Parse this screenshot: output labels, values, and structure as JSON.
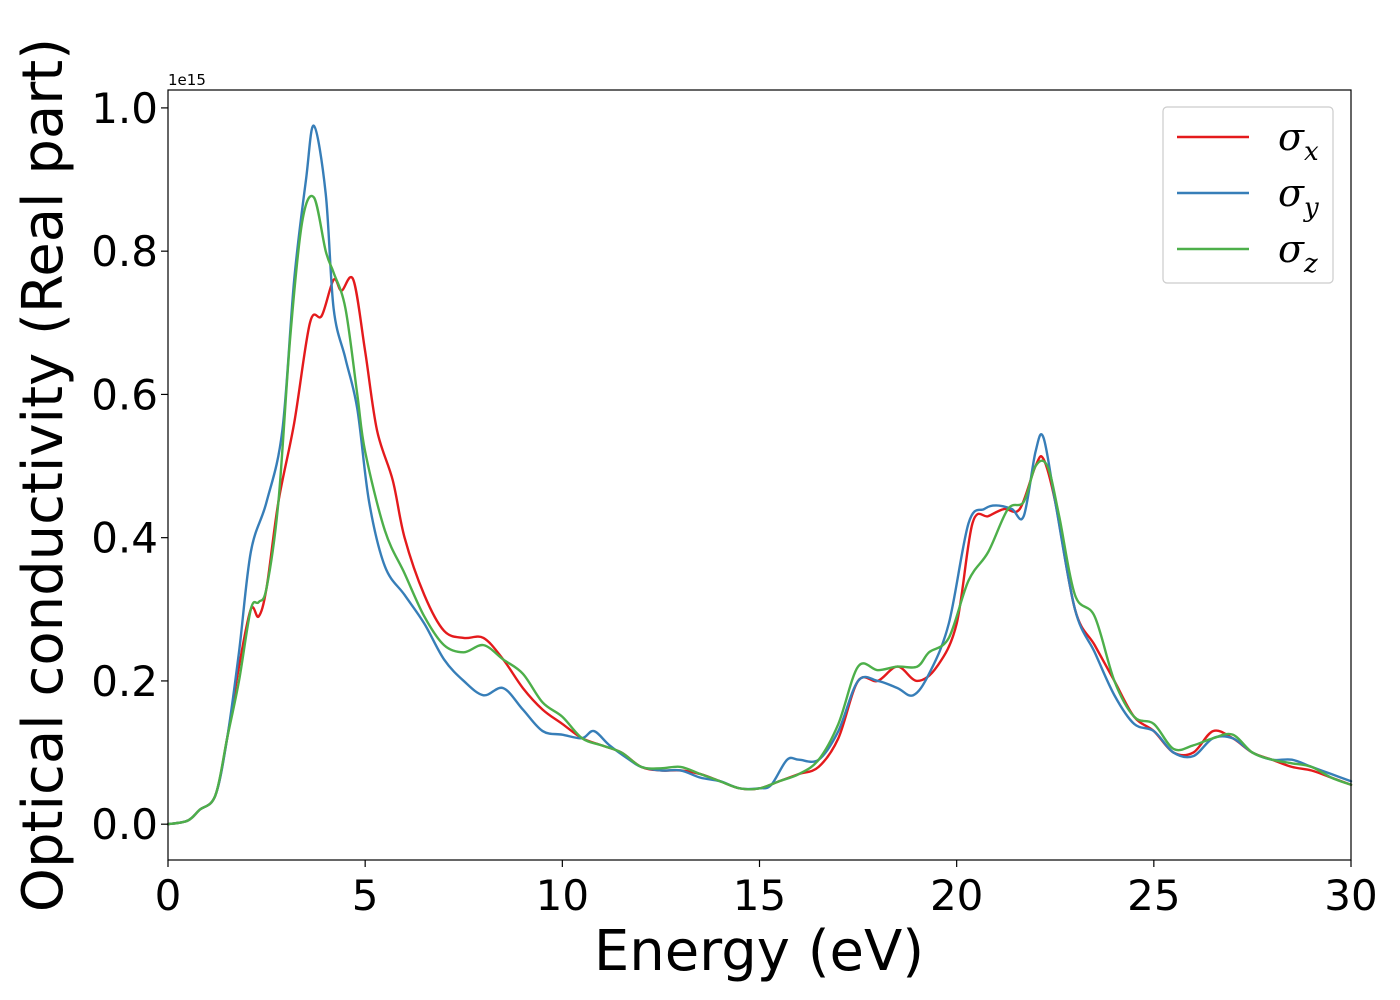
{
  "chart_data": {
    "type": "line",
    "xlabel": "Energy (eV)",
    "ylabel": "Optical conductivity (Real part)",
    "y_offset_text": "1e15",
    "xlim": [
      0,
      30
    ],
    "ylim": [
      -0.05,
      1.025
    ],
    "xticks": [
      0,
      5,
      10,
      15,
      20,
      25,
      30
    ],
    "xtick_labels": [
      "0",
      "5",
      "10",
      "15",
      "20",
      "25",
      "30"
    ],
    "yticks": [
      0.0,
      0.2,
      0.4,
      0.6,
      0.8,
      1.0
    ],
    "ytick_labels": [
      "0.0",
      "0.2",
      "0.4",
      "0.6",
      "0.8",
      "1.0"
    ],
    "grid": false,
    "legend_position": "top-right",
    "series": [
      {
        "name": "σx",
        "symbol": "σ",
        "subscript": "x",
        "color": "#e41a1c",
        "x": [
          0,
          0.5,
          0.8,
          1.2,
          1.5,
          1.8,
          2.1,
          2.3,
          2.5,
          2.8,
          3.2,
          3.6,
          3.9,
          4.2,
          4.4,
          4.7,
          5.0,
          5.3,
          5.7,
          6.0,
          6.5,
          7.0,
          7.5,
          8.0,
          8.5,
          9.0,
          9.5,
          10.0,
          10.5,
          11.0,
          11.5,
          12.0,
          12.5,
          13.0,
          13.5,
          14.0,
          14.5,
          15.0,
          15.5,
          16.0,
          16.5,
          17.0,
          17.5,
          18.0,
          18.5,
          19.0,
          19.5,
          20.0,
          20.4,
          20.8,
          21.2,
          21.6,
          22.0,
          22.2,
          22.5,
          23.0,
          23.5,
          24.0,
          24.5,
          25.0,
          25.5,
          26.0,
          26.5,
          27.0,
          27.5,
          28.0,
          28.5,
          29.0,
          29.5,
          30.0
        ],
        "y": [
          0.0,
          0.005,
          0.02,
          0.04,
          0.12,
          0.22,
          0.3,
          0.29,
          0.33,
          0.45,
          0.56,
          0.7,
          0.71,
          0.76,
          0.745,
          0.76,
          0.66,
          0.55,
          0.48,
          0.4,
          0.32,
          0.27,
          0.26,
          0.26,
          0.23,
          0.19,
          0.16,
          0.14,
          0.12,
          0.11,
          0.1,
          0.08,
          0.075,
          0.075,
          0.07,
          0.06,
          0.05,
          0.05,
          0.06,
          0.07,
          0.08,
          0.12,
          0.2,
          0.2,
          0.22,
          0.2,
          0.22,
          0.28,
          0.42,
          0.43,
          0.44,
          0.44,
          0.5,
          0.51,
          0.45,
          0.3,
          0.25,
          0.2,
          0.15,
          0.13,
          0.1,
          0.1,
          0.13,
          0.12,
          0.1,
          0.09,
          0.08,
          0.075,
          0.065,
          0.055
        ]
      },
      {
        "name": "σy",
        "symbol": "σ",
        "subscript": "y",
        "color": "#377eb8",
        "x": [
          0,
          0.5,
          0.8,
          1.2,
          1.5,
          1.8,
          2.1,
          2.5,
          2.9,
          3.2,
          3.5,
          3.7,
          4.0,
          4.2,
          4.5,
          4.8,
          5.1,
          5.5,
          6.0,
          6.5,
          7.0,
          7.5,
          8.0,
          8.5,
          9.0,
          9.5,
          10.0,
          10.5,
          10.8,
          11.2,
          11.7,
          12.0,
          12.5,
          13.0,
          13.5,
          14.0,
          14.5,
          15.0,
          15.3,
          15.7,
          16.0,
          16.5,
          17.0,
          17.5,
          18.0,
          18.5,
          18.9,
          19.3,
          19.8,
          20.3,
          20.7,
          21.0,
          21.4,
          21.7,
          22.0,
          22.2,
          22.5,
          23.0,
          23.5,
          24.0,
          24.5,
          25.0,
          25.5,
          26.0,
          26.5,
          27.0,
          27.5,
          28.0,
          28.5,
          29.0,
          29.5,
          30.0
        ],
        "y": [
          0.0,
          0.005,
          0.02,
          0.04,
          0.12,
          0.24,
          0.38,
          0.45,
          0.55,
          0.76,
          0.9,
          0.975,
          0.88,
          0.72,
          0.65,
          0.58,
          0.45,
          0.36,
          0.32,
          0.28,
          0.23,
          0.2,
          0.18,
          0.19,
          0.16,
          0.13,
          0.125,
          0.12,
          0.13,
          0.11,
          0.09,
          0.08,
          0.075,
          0.075,
          0.065,
          0.06,
          0.05,
          0.05,
          0.055,
          0.09,
          0.09,
          0.09,
          0.13,
          0.2,
          0.2,
          0.19,
          0.18,
          0.21,
          0.28,
          0.42,
          0.44,
          0.445,
          0.44,
          0.43,
          0.52,
          0.54,
          0.45,
          0.3,
          0.24,
          0.18,
          0.14,
          0.13,
          0.1,
          0.095,
          0.12,
          0.12,
          0.1,
          0.09,
          0.09,
          0.08,
          0.07,
          0.06
        ]
      },
      {
        "name": "σz",
        "symbol": "σ",
        "subscript": "z",
        "color": "#4daf4a",
        "x": [
          0,
          0.5,
          0.8,
          1.2,
          1.5,
          1.8,
          2.1,
          2.3,
          2.5,
          2.8,
          3.1,
          3.4,
          3.7,
          4.0,
          4.2,
          4.5,
          4.8,
          5.0,
          5.5,
          6.0,
          6.5,
          7.0,
          7.5,
          8.0,
          8.5,
          9.0,
          9.5,
          10.0,
          10.5,
          11.0,
          11.5,
          12.0,
          12.5,
          13.0,
          13.5,
          14.0,
          14.5,
          15.0,
          15.5,
          16.0,
          16.5,
          17.0,
          17.5,
          18.0,
          18.5,
          19.0,
          19.3,
          19.8,
          20.3,
          20.8,
          21.3,
          21.7,
          22.0,
          22.3,
          22.6,
          23.0,
          23.5,
          24.0,
          24.5,
          25.0,
          25.5,
          26.0,
          26.5,
          27.0,
          27.5,
          28.0,
          28.5,
          29.0,
          29.5,
          30.0
        ],
        "y": [
          0.0,
          0.005,
          0.02,
          0.04,
          0.12,
          0.2,
          0.3,
          0.31,
          0.33,
          0.45,
          0.68,
          0.84,
          0.875,
          0.8,
          0.77,
          0.72,
          0.6,
          0.52,
          0.41,
          0.35,
          0.29,
          0.25,
          0.24,
          0.25,
          0.23,
          0.21,
          0.17,
          0.15,
          0.12,
          0.11,
          0.1,
          0.08,
          0.078,
          0.08,
          0.07,
          0.06,
          0.05,
          0.05,
          0.06,
          0.07,
          0.09,
          0.14,
          0.22,
          0.215,
          0.22,
          0.22,
          0.24,
          0.26,
          0.34,
          0.38,
          0.44,
          0.45,
          0.5,
          0.5,
          0.43,
          0.32,
          0.29,
          0.2,
          0.15,
          0.14,
          0.105,
          0.11,
          0.12,
          0.125,
          0.1,
          0.09,
          0.085,
          0.08,
          0.065,
          0.055
        ]
      }
    ]
  }
}
